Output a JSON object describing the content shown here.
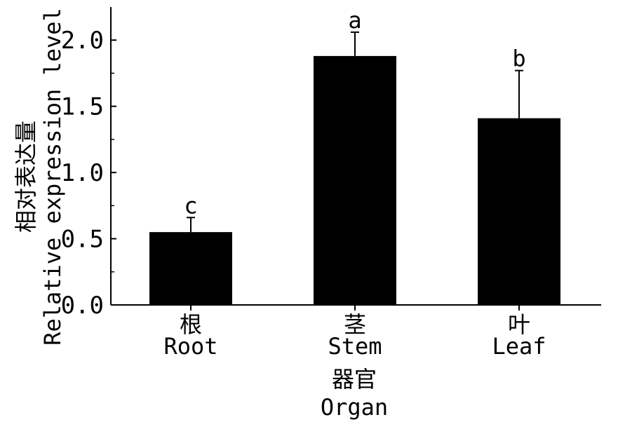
{
  "chart_data": {
    "type": "bar",
    "categories": [
      "根\nRoot",
      "茎\nStem",
      "叶\nLeaf"
    ],
    "category_labels": [
      {
        "zh": "根",
        "en": "Root"
      },
      {
        "zh": "茎",
        "en": "Stem"
      },
      {
        "zh": "叶",
        "en": "Leaf"
      }
    ],
    "values": [
      0.55,
      1.88,
      1.41
    ],
    "error_bars": [
      0.11,
      0.18,
      0.36
    ],
    "significance": [
      "c",
      "a",
      "b"
    ],
    "xlabel_zh": "器官",
    "xlabel_en": "Organ",
    "ylabel_zh": "相对表达量",
    "ylabel_en": "Relative expression level",
    "ylim": [
      0,
      2.25
    ],
    "yticks": [
      "0.0",
      "0.5",
      "1.0",
      "1.5",
      "2.0"
    ],
    "ytick_values": [
      0,
      0.5,
      1.0,
      1.5,
      2.0
    ],
    "bar_color": "#000000",
    "grid": false
  }
}
